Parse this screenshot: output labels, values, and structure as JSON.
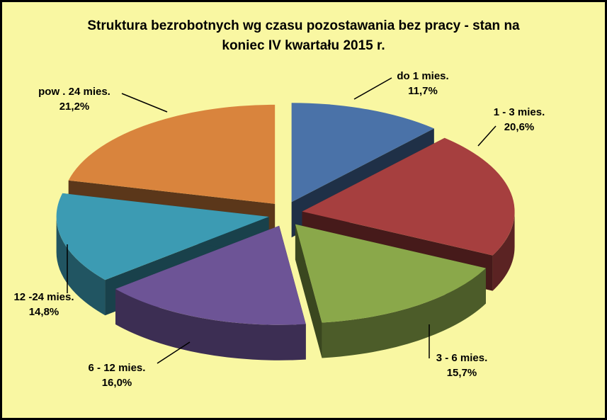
{
  "chart_data": {
    "type": "pie",
    "title_lines": [
      "Struktura bezrobotnych wg czasu pozostawania bez pracy - stan na",
      "koniec IV kwartału 2015 r."
    ],
    "slices": [
      {
        "label": "do 1 mies.",
        "value": 11.7,
        "value_label": "11,7%",
        "color": "#4a72a8"
      },
      {
        "label": "1 - 3 mies.",
        "value": 20.6,
        "value_label": "20,6%",
        "color": "#a63f3f"
      },
      {
        "label": "3 - 6 mies.",
        "value": 15.7,
        "value_label": "15,7%",
        "color": "#8aa84a"
      },
      {
        "label": "6 - 12 mies.",
        "value": 16.0,
        "value_label": "16,0%",
        "color": "#6d5496"
      },
      {
        "label": "12 -24 mies.",
        "value": 14.8,
        "value_label": "14,8%",
        "color": "#3c9bb3"
      },
      {
        "label": "pow . 24 mies.",
        "value": 21.2,
        "value_label": "21,2%",
        "color": "#d9843d"
      }
    ],
    "style": "3d-exploded-pie"
  }
}
